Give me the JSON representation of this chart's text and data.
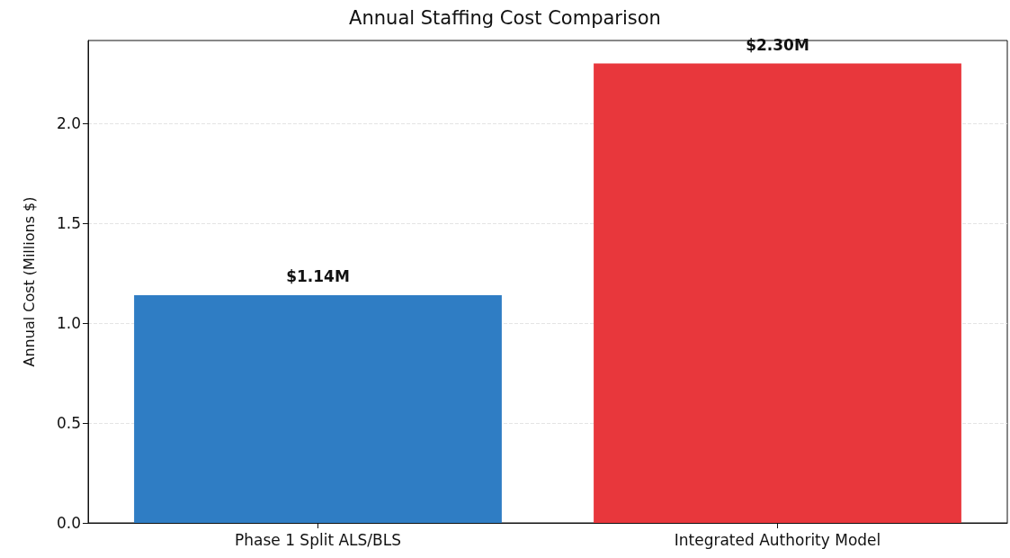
{
  "chart_data": {
    "type": "bar",
    "title": "Annual Staffing Cost Comparison",
    "ylabel": "Annual Cost (Millions $)",
    "categories": [
      "Phase 1 Split ALS/BLS",
      "Integrated Authority Model"
    ],
    "values": [
      1.14,
      2.3
    ],
    "colors": [
      "#2f7dc4",
      "#e8373c"
    ],
    "value_labels": [
      "$1.14M",
      "$2.30M"
    ],
    "ylim": [
      0,
      2.415
    ],
    "yticks": [
      {
        "value": 0,
        "label": "0.0"
      },
      {
        "value": 0.5,
        "label": "0.5"
      },
      {
        "value": 1,
        "label": "1.0"
      },
      {
        "value": 1.5,
        "label": "1.5"
      },
      {
        "value": 2,
        "label": "2.0"
      }
    ],
    "grid": "y"
  }
}
